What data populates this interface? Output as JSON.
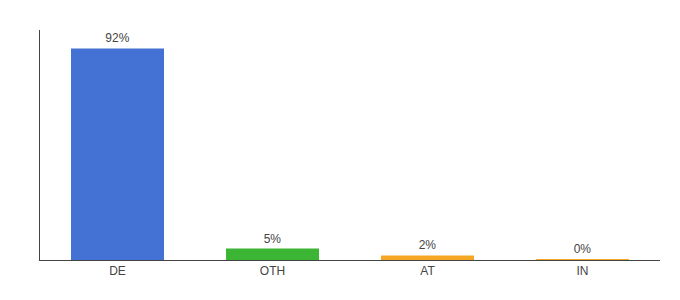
{
  "chart_data": {
    "type": "bar",
    "categories": [
      "DE",
      "OTH",
      "AT",
      "IN"
    ],
    "values": [
      92,
      5,
      2,
      0.3
    ],
    "value_labels": [
      "92%",
      "5%",
      "2%",
      "0%"
    ],
    "colors": [
      "#4472D4",
      "#3CB534",
      "#F5A623",
      "#F5A623"
    ],
    "ylim": [
      0,
      100
    ],
    "grid": false,
    "data_labels": true,
    "tick_labels": "x"
  }
}
